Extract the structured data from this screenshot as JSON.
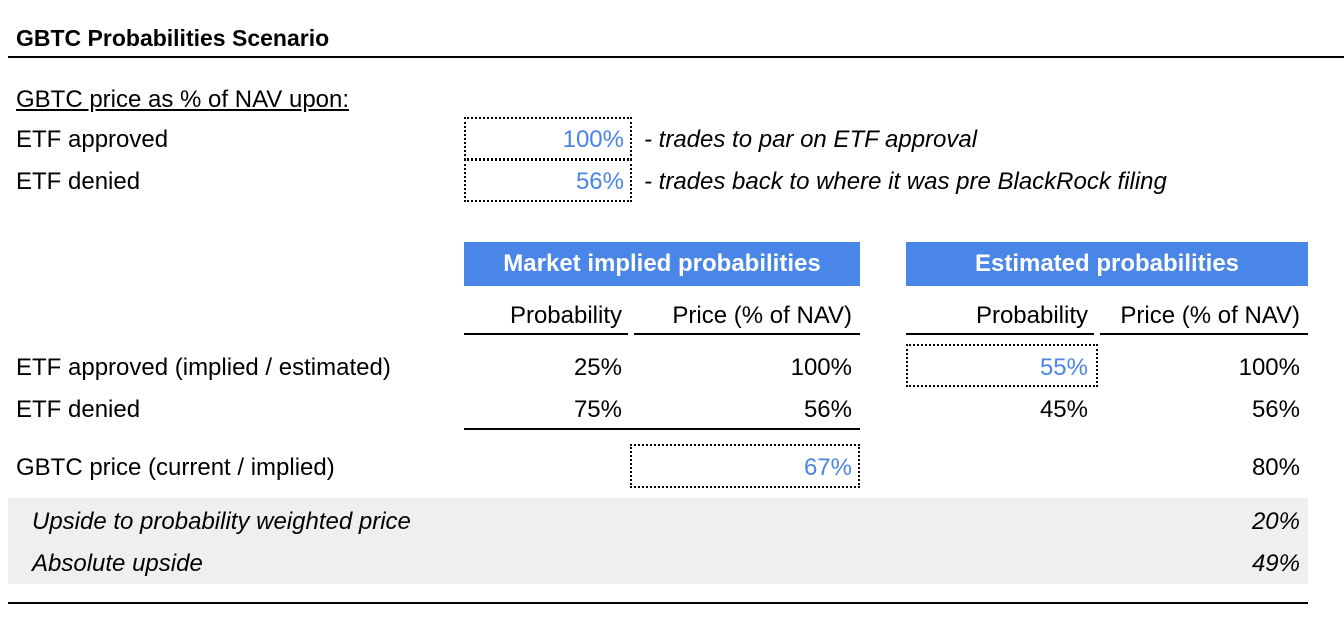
{
  "title": "GBTC Probabilities Scenario",
  "inputs": {
    "heading": "GBTC price as % of NAV upon:",
    "rows": [
      {
        "label": "ETF approved",
        "value": "100%",
        "note": "- trades to par on ETF approval"
      },
      {
        "label": "ETF denied",
        "value": "56%",
        "note": "- trades back to where it was pre BlackRock filing"
      }
    ]
  },
  "market": {
    "header": "Market implied probabilities",
    "col_probability": "Probability",
    "col_price": "Price (% of NAV)"
  },
  "estimated": {
    "header": "Estimated probabilities",
    "col_probability": "Probability",
    "col_price": "Price (% of NAV)"
  },
  "rows": [
    {
      "label": "ETF approved (implied / estimated)",
      "m_prob": "25%",
      "m_price": "100%",
      "e_prob": "55%",
      "e_price": "100%"
    },
    {
      "label": "ETF denied",
      "m_prob": "75%",
      "m_price": "56%",
      "e_prob": "45%",
      "e_price": "56%"
    }
  ],
  "gbtc_price": {
    "label": "GBTC price (current / implied)",
    "market": "67%",
    "estimated": "80%"
  },
  "upside": [
    {
      "label": "Upside to probability weighted price",
      "value": "20%"
    },
    {
      "label": "Absolute upside",
      "value": "49%"
    }
  ]
}
